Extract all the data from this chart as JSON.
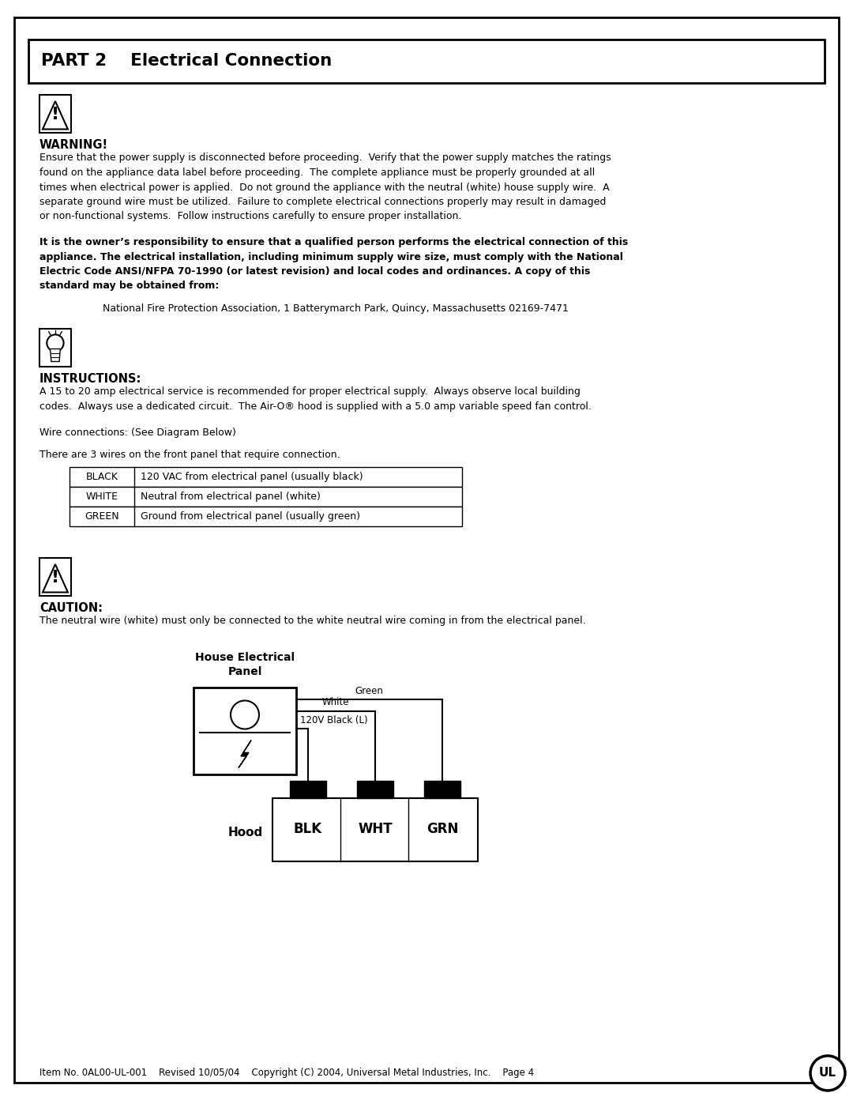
{
  "title": "PART 2    Electrical Connection",
  "warning_header": "WARNING!",
  "warning_lines": [
    "Ensure that the power supply is disconnected before proceeding.  Verify that the power supply matches the ratings",
    "found on the appliance data label before proceeding.  The complete appliance must be properly grounded at all",
    "times when electrical power is applied.  Do not ground the appliance with the neutral (white) house supply wire.  A",
    "separate ground wire must be utilized.  Failure to complete electrical connections properly may result in damaged",
    "or non-functional systems.  Follow instructions carefully to ensure proper installation."
  ],
  "bold_lines": [
    "It is the owner’s responsibility to ensure that a qualified person performs the electrical connection of this",
    "appliance. The electrical installation, including minimum supply wire size, must comply with the National",
    "Electric Code ANSI/NFPA 70-1990 (or latest revision) and local codes and ordinances. A copy of this",
    "standard may be obtained from:"
  ],
  "nfpa_address": "National Fire Protection Association, 1 Batterymarch Park, Quincy, Massachusetts 02169-7471",
  "instructions_header": "INSTRUCTIONS:",
  "instructions_lines": [
    "A 15 to 20 amp electrical service is recommended for proper electrical supply.  Always observe local building",
    "codes.  Always use a dedicated circuit.  The Air-O® hood is supplied with a 5.0 amp variable speed fan control."
  ],
  "wire_label": "Wire connections: (See Diagram Below)",
  "three_wires_label": "There are 3 wires on the front panel that require connection.",
  "table_rows": [
    [
      "BLACK",
      "120 VAC from electrical panel (usually black)"
    ],
    [
      "WHITE",
      "Neutral from electrical panel (white)"
    ],
    [
      "GREEN",
      "Ground from electrical panel (usually green)"
    ]
  ],
  "caution_header": "CAUTION:",
  "caution_body": "The neutral wire (white) must only be connected to the white neutral wire coming in from the electrical panel.",
  "diagram_panel_label": "House Electrical\nPanel",
  "diagram_hood_label": "Hood",
  "diagram_terminals": [
    "BLK",
    "WHT",
    "GRN"
  ],
  "diagram_green": "Green",
  "diagram_white": "White",
  "diagram_black": "120V Black (L)",
  "footer": "Item No. 0AL00-UL-001    Revised 10/05/04    Copyright (C) 2004, Universal Metal Industries, Inc.    Page 4",
  "bg_color": "#ffffff",
  "text_color": "#000000"
}
